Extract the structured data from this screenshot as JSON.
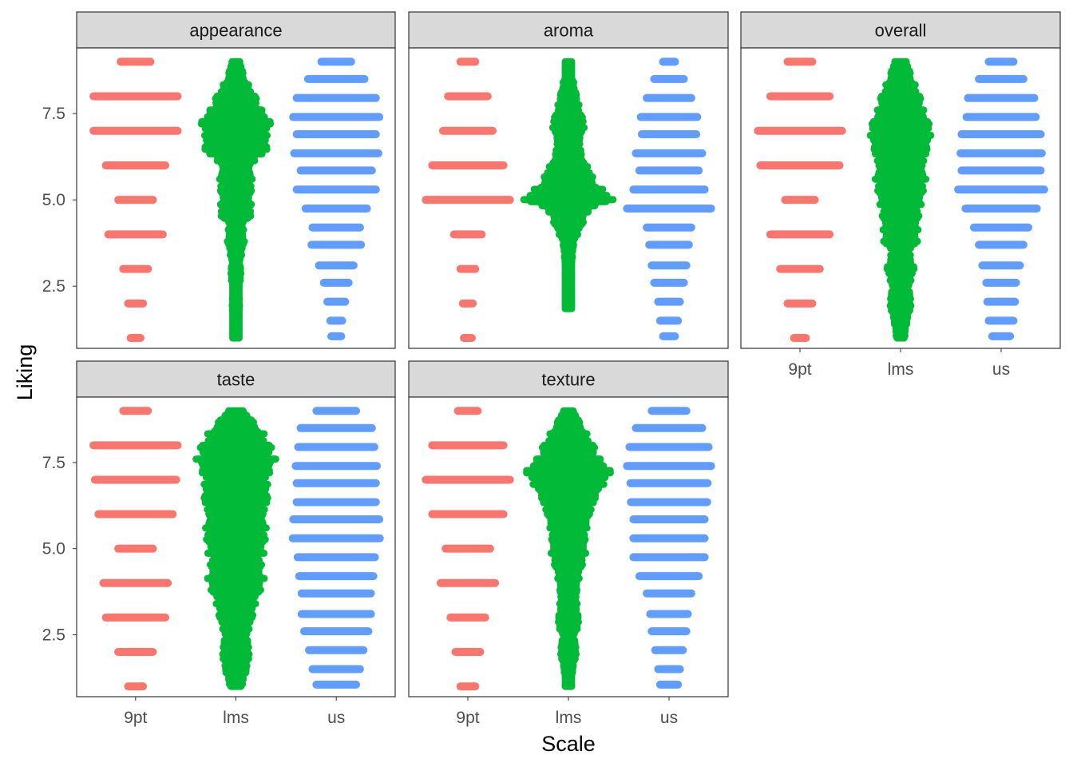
{
  "chart_data": {
    "type": "scatter",
    "subtype": "beeswarm-facets",
    "xlabel": "Scale",
    "ylabel": "Liking",
    "categories": [
      "9pt",
      "lms",
      "us"
    ],
    "y_ticks": [
      2.5,
      5.0,
      7.5
    ],
    "y_tick_labels": [
      "2.5",
      "5.0",
      "7.5"
    ],
    "ylim": [
      0.7,
      9.4
    ],
    "grid": false,
    "legend": "none",
    "colors": {
      "9pt": "#F8766D",
      "lms": "#00BA38",
      "us": "#619CFF"
    },
    "panels": [
      {
        "name": "appearance",
        "series": [
          {
            "category": "9pt",
            "type": "levels",
            "values": [
              1,
              2,
              3,
              4,
              5,
              6,
              7,
              8,
              9
            ],
            "widths": [
              0.1,
              0.15,
              0.25,
              0.55,
              0.35,
              0.6,
              0.85,
              0.85,
              0.3
            ]
          },
          {
            "category": "lms",
            "type": "continuous",
            "min": 1.0,
            "max": 9.0,
            "profile": [
              [
                1.0,
                0.03
              ],
              [
                1.5,
                0.05
              ],
              [
                2.0,
                0.07
              ],
              [
                2.5,
                0.05
              ],
              [
                2.8,
                0.1
              ],
              [
                3.2,
                0.07
              ],
              [
                3.8,
                0.15
              ],
              [
                4.3,
                0.12
              ],
              [
                4.6,
                0.3
              ],
              [
                5.0,
                0.25
              ],
              [
                5.5,
                0.3
              ],
              [
                6.0,
                0.25
              ],
              [
                6.5,
                0.6
              ],
              [
                6.9,
                0.55
              ],
              [
                7.3,
                0.65
              ],
              [
                7.6,
                0.45
              ],
              [
                8.0,
                0.35
              ],
              [
                8.5,
                0.15
              ],
              [
                9.0,
                0.08
              ]
            ]
          },
          {
            "category": "us",
            "type": "levels",
            "values": [
              1.05,
              1.5,
              2.05,
              2.6,
              3.1,
              3.7,
              4.2,
              4.75,
              5.3,
              5.85,
              6.35,
              6.9,
              7.4,
              7.95,
              8.5,
              9.0
            ],
            "widths": [
              0.1,
              0.12,
              0.18,
              0.25,
              0.35,
              0.5,
              0.48,
              0.62,
              0.8,
              0.72,
              0.85,
              0.8,
              0.87,
              0.8,
              0.57,
              0.3
            ]
          }
        ]
      },
      {
        "name": "aroma",
        "series": [
          {
            "category": "9pt",
            "type": "levels",
            "values": [
              1,
              2,
              3,
              4,
              5,
              6,
              7,
              8,
              9
            ],
            "widths": [
              0.08,
              0.1,
              0.15,
              0.28,
              0.85,
              0.72,
              0.5,
              0.4,
              0.15
            ]
          },
          {
            "category": "lms",
            "type": "continuous",
            "min": 1.85,
            "max": 9.0,
            "profile": [
              [
                1.85,
                0.05
              ],
              [
                2.5,
                0.04
              ],
              [
                3.0,
                0.05
              ],
              [
                3.8,
                0.1
              ],
              [
                4.3,
                0.25
              ],
              [
                4.7,
                0.35
              ],
              [
                5.05,
                0.85
              ],
              [
                5.4,
                0.5
              ],
              [
                5.8,
                0.4
              ],
              [
                6.2,
                0.25
              ],
              [
                6.7,
                0.2
              ],
              [
                7.2,
                0.3
              ],
              [
                7.6,
                0.2
              ],
              [
                8.0,
                0.15
              ],
              [
                8.6,
                0.06
              ],
              [
                9.0,
                0.05
              ]
            ]
          },
          {
            "category": "us",
            "type": "levels",
            "values": [
              1.05,
              1.5,
              2.05,
              2.6,
              3.1,
              3.7,
              4.2,
              4.75,
              5.3,
              5.85,
              6.35,
              6.9,
              7.4,
              7.95,
              8.5,
              9.0
            ],
            "widths": [
              0.12,
              0.18,
              0.22,
              0.3,
              0.35,
              0.4,
              0.45,
              0.85,
              0.72,
              0.6,
              0.67,
              0.55,
              0.57,
              0.45,
              0.3,
              0.12
            ]
          }
        ]
      },
      {
        "name": "overall",
        "series": [
          {
            "category": "9pt",
            "type": "levels",
            "values": [
              1,
              2,
              3,
              4,
              5,
              6,
              7,
              8,
              9
            ],
            "widths": [
              0.12,
              0.25,
              0.4,
              0.6,
              0.3,
              0.8,
              0.85,
              0.6,
              0.25
            ]
          },
          {
            "category": "lms",
            "type": "continuous",
            "min": 1.0,
            "max": 9.0,
            "profile": [
              [
                1.0,
                0.07
              ],
              [
                1.5,
                0.12
              ],
              [
                2.0,
                0.2
              ],
              [
                2.5,
                0.15
              ],
              [
                3.0,
                0.25
              ],
              [
                3.5,
                0.15
              ],
              [
                3.8,
                0.3
              ],
              [
                4.3,
                0.3
              ],
              [
                4.8,
                0.35
              ],
              [
                5.2,
                0.4
              ],
              [
                5.6,
                0.45
              ],
              [
                6.0,
                0.4
              ],
              [
                6.5,
                0.5
              ],
              [
                7.0,
                0.55
              ],
              [
                7.3,
                0.5
              ],
              [
                7.6,
                0.4
              ],
              [
                8.0,
                0.35
              ],
              [
                8.5,
                0.2
              ],
              [
                9.0,
                0.12
              ]
            ]
          },
          {
            "category": "us",
            "type": "levels",
            "values": [
              1.05,
              1.5,
              2.05,
              2.6,
              3.1,
              3.7,
              4.2,
              4.75,
              5.3,
              5.85,
              6.35,
              6.9,
              7.4,
              7.95,
              8.5,
              9.0
            ],
            "widths": [
              0.18,
              0.25,
              0.28,
              0.3,
              0.38,
              0.45,
              0.55,
              0.72,
              0.87,
              0.8,
              0.82,
              0.8,
              0.7,
              0.67,
              0.45,
              0.25
            ]
          }
        ]
      },
      {
        "name": "taste",
        "series": [
          {
            "category": "9pt",
            "type": "levels",
            "values": [
              1,
              2,
              3,
              4,
              5,
              6,
              7,
              8,
              9
            ],
            "widths": [
              0.15,
              0.35,
              0.6,
              0.65,
              0.35,
              0.75,
              0.82,
              0.85,
              0.25
            ]
          },
          {
            "category": "lms",
            "type": "continuous",
            "min": 1.0,
            "max": 9.0,
            "profile": [
              [
                1.0,
                0.1
              ],
              [
                1.5,
                0.2
              ],
              [
                2.0,
                0.25
              ],
              [
                2.5,
                0.2
              ],
              [
                3.0,
                0.3
              ],
              [
                3.5,
                0.35
              ],
              [
                4.0,
                0.5
              ],
              [
                4.5,
                0.45
              ],
              [
                5.0,
                0.5
              ],
              [
                5.5,
                0.55
              ],
              [
                6.0,
                0.5
              ],
              [
                6.5,
                0.6
              ],
              [
                7.0,
                0.55
              ],
              [
                7.5,
                0.7
              ],
              [
                7.9,
                0.65
              ],
              [
                8.3,
                0.5
              ],
              [
                8.7,
                0.3
              ],
              [
                9.0,
                0.15
              ]
            ]
          },
          {
            "category": "us",
            "type": "levels",
            "values": [
              1.05,
              1.5,
              2.05,
              2.6,
              3.1,
              3.7,
              4.2,
              4.75,
              5.3,
              5.85,
              6.35,
              6.9,
              7.4,
              7.95,
              8.5,
              9.0
            ],
            "widths": [
              0.4,
              0.48,
              0.55,
              0.65,
              0.7,
              0.7,
              0.75,
              0.78,
              0.88,
              0.87,
              0.8,
              0.8,
              0.82,
              0.77,
              0.72,
              0.4
            ]
          }
        ]
      },
      {
        "name": "texture",
        "series": [
          {
            "category": "9pt",
            "type": "levels",
            "values": [
              1,
              2,
              3,
              4,
              5,
              6,
              7,
              8,
              9
            ],
            "widths": [
              0.15,
              0.25,
              0.35,
              0.55,
              0.45,
              0.72,
              0.85,
              0.72,
              0.2
            ]
          },
          {
            "category": "lms",
            "type": "continuous",
            "min": 1.0,
            "max": 9.0,
            "profile": [
              [
                1.0,
                0.05
              ],
              [
                1.5,
                0.08
              ],
              [
                2.0,
                0.15
              ],
              [
                2.5,
                0.1
              ],
              [
                2.8,
                0.2
              ],
              [
                3.3,
                0.15
              ],
              [
                3.8,
                0.15
              ],
              [
                4.3,
                0.2
              ],
              [
                4.8,
                0.3
              ],
              [
                5.3,
                0.3
              ],
              [
                5.8,
                0.35
              ],
              [
                6.3,
                0.45
              ],
              [
                6.8,
                0.6
              ],
              [
                7.3,
                0.8
              ],
              [
                7.6,
                0.55
              ],
              [
                8.0,
                0.45
              ],
              [
                8.5,
                0.25
              ],
              [
                9.0,
                0.1
              ]
            ]
          },
          {
            "category": "us",
            "type": "levels",
            "values": [
              1.05,
              1.5,
              2.05,
              2.6,
              3.1,
              3.7,
              4.2,
              4.75,
              5.3,
              5.85,
              6.35,
              6.9,
              7.4,
              7.95,
              8.5,
              9.0
            ],
            "widths": [
              0.18,
              0.22,
              0.28,
              0.35,
              0.38,
              0.45,
              0.6,
              0.72,
              0.72,
              0.72,
              0.77,
              0.78,
              0.85,
              0.8,
              0.67,
              0.35
            ]
          }
        ]
      }
    ]
  }
}
